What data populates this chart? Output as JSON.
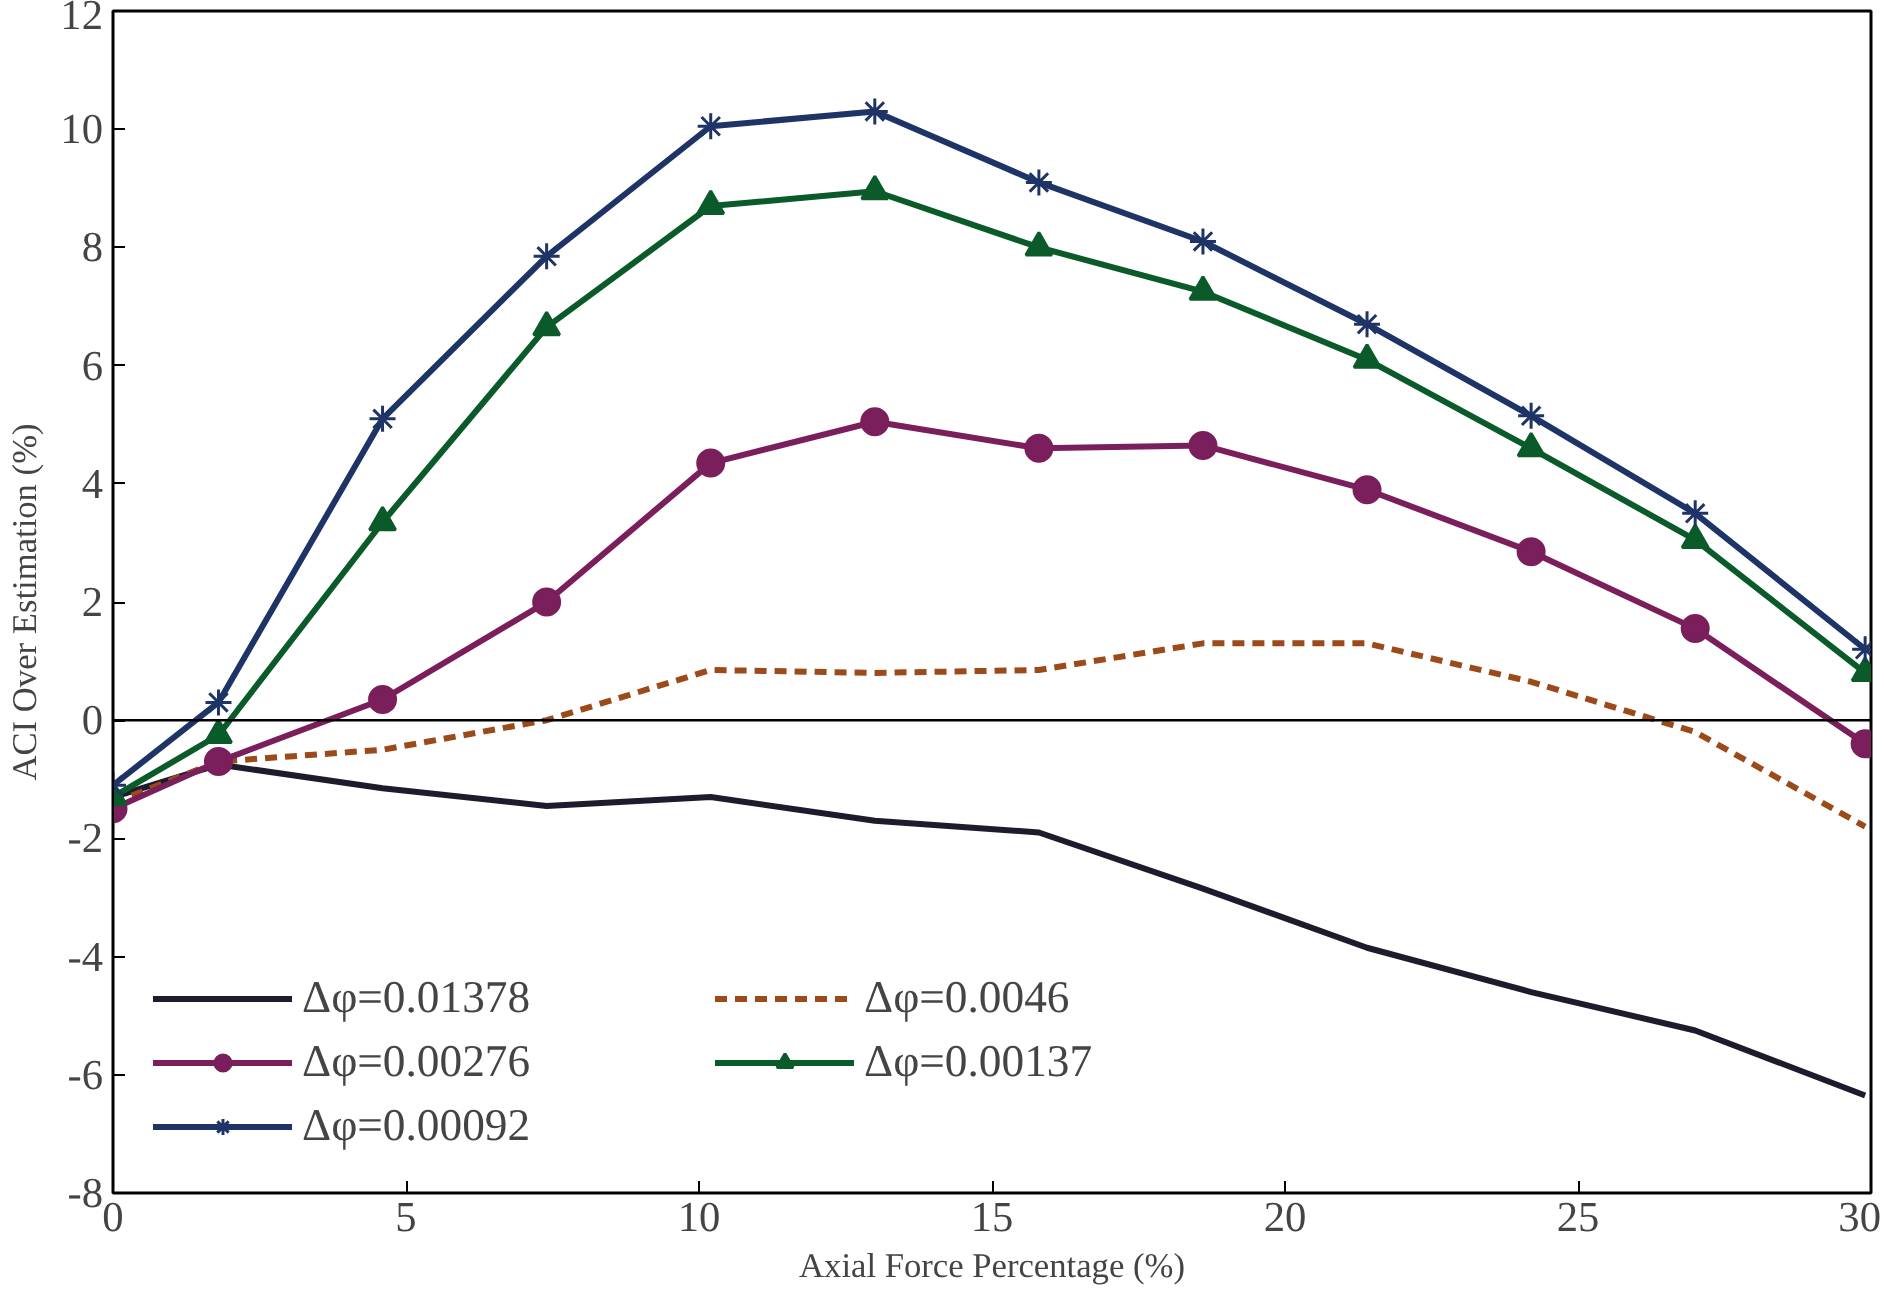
{
  "chart_data": {
    "type": "line",
    "xlabel": "Axial Force Percentage (%)",
    "ylabel": "ACI Over Estimation (%)",
    "x": [
      0,
      1.8,
      4.6,
      7.4,
      10.2,
      13,
      15.8,
      18.6,
      21.4,
      24.2,
      27,
      29.9
    ],
    "series": [
      {
        "name": "Δφ=0.01378",
        "color": "#1c1c2c",
        "marker": "none",
        "line_style": "solid",
        "values": [
          -1.3,
          -0.75,
          -1.15,
          -1.45,
          -1.3,
          -1.7,
          -1.9,
          -2.85,
          -3.85,
          -4.6,
          -5.25,
          -6.35
        ]
      },
      {
        "name": "Δφ=0.0046",
        "color": "#9c4a1a",
        "marker": "none",
        "line_style": "dashed",
        "values": [
          -1.4,
          -0.7,
          -0.5,
          0.0,
          0.85,
          0.8,
          0.85,
          1.3,
          1.3,
          0.65,
          -0.2,
          -1.8
        ]
      },
      {
        "name": "Δφ=0.00276",
        "color": "#7a1f5c",
        "marker": "circle",
        "line_style": "solid",
        "values": [
          -1.5,
          -0.7,
          0.35,
          2.0,
          4.35,
          5.05,
          4.6,
          4.65,
          3.9,
          2.85,
          1.55,
          -0.4
        ]
      },
      {
        "name": "Δφ=0.00137",
        "color": "#0a5a2a",
        "marker": "triangle",
        "line_style": "solid",
        "values": [
          -1.3,
          -0.25,
          3.35,
          6.65,
          8.7,
          8.95,
          8.0,
          7.25,
          6.1,
          4.6,
          3.05,
          0.8
        ]
      },
      {
        "name": "Δφ=0.00092",
        "color": "#1f3466",
        "marker": "cross",
        "line_style": "solid",
        "values": [
          -1.1,
          0.3,
          5.1,
          7.85,
          10.05,
          10.3,
          9.1,
          8.1,
          6.7,
          5.15,
          3.5,
          1.2
        ]
      }
    ],
    "xlim": [
      0,
      30
    ],
    "xticks": [
      0,
      5,
      10,
      15,
      20,
      25,
      30
    ],
    "ylim": [
      -8,
      12
    ],
    "yticks": [
      -8,
      -6,
      -4,
      -2,
      0,
      2,
      4,
      6,
      8,
      10,
      12
    ],
    "ref_lines": [
      {
        "axis": "y",
        "value": 0,
        "color": "#000000"
      }
    ],
    "grid": false,
    "legend": "bottom left"
  }
}
